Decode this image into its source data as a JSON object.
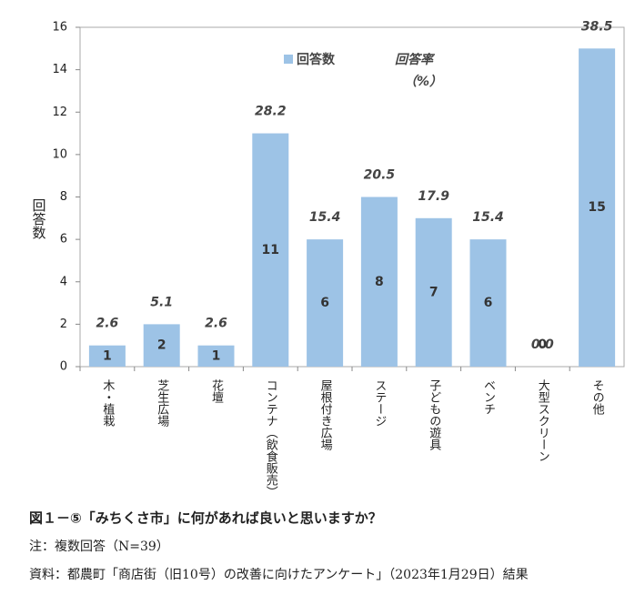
{
  "chart_data": {
    "type": "bar",
    "y_label": "回答数",
    "categories": [
      "木・植栽",
      "芝生広場",
      "花壇",
      "コンテナ（飲食販売）",
      "屋根付き広場",
      "ステージ",
      "子どもの遊具",
      "ベンチ",
      "大型スクリーン",
      "その他"
    ],
    "series": [
      {
        "name": "回答数",
        "color": "#9dc3e6",
        "values": [
          1,
          2,
          1,
          11,
          6,
          8,
          7,
          6,
          0,
          15
        ]
      },
      {
        "name": "回答率",
        "unit_label": "（%）",
        "values": [
          2.6,
          5.1,
          2.6,
          28.2,
          15.4,
          20.5,
          17.9,
          15.4,
          0.0,
          38.5
        ],
        "value_labels": [
          "2.6",
          "5.1",
          "2.6",
          "28.2",
          "15.4",
          "20.5",
          "17.9",
          "15.4",
          "0.0",
          "38.5"
        ]
      }
    ],
    "ylim": [
      0,
      16
    ],
    "yticks": [
      0,
      2,
      4,
      6,
      8,
      10,
      12,
      14,
      16
    ],
    "caption": "図１－⑤「みちくさ市」に何があれば良いと思いますか？",
    "note": "注：複数回答（N=39）",
    "source": "資料：都農町「商店街（旧10号）の改善に向けたアンケート」（2023年1月29日）結果"
  }
}
